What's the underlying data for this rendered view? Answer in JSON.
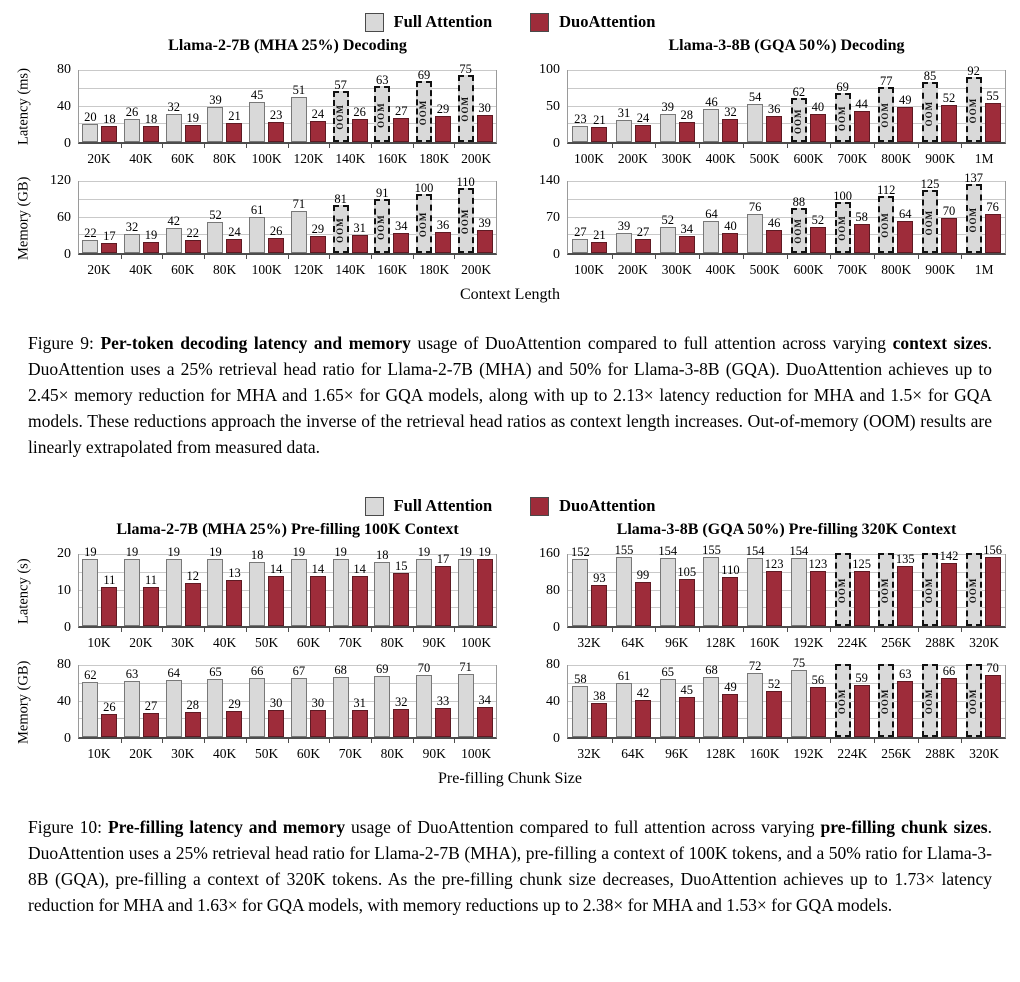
{
  "colors": {
    "full_fill": "#d9d9d9",
    "full_border": "#787878",
    "duo_fill": "#9e2c3a",
    "duo_border": "#5e1a23",
    "grid": "#c9c9c9",
    "axis": "#4d4d4d"
  },
  "chart_data": {
    "type": "grouped-bar",
    "figures": [
      {
        "id": "figure-9",
        "legend": [
          {
            "key": "full",
            "label": "Full Attention"
          },
          {
            "key": "duo",
            "label": "DuoAttention"
          }
        ],
        "xlabel": "Context Length",
        "columns": [
          {
            "title": "Llama-2-7B (MHA 25%) Decoding",
            "categories": [
              "20K",
              "40K",
              "60K",
              "80K",
              "100K",
              "120K",
              "140K",
              "160K",
              "180K",
              "200K"
            ],
            "rows": [
              {
                "ylabel": "Latency (ms)",
                "ymax": 80,
                "yticks": [
                  0,
                  40,
                  80
                ],
                "series": [
                  {
                    "name": "Full Attention",
                    "key": "full",
                    "values": [
                      20,
                      26,
                      32,
                      39,
                      45,
                      51,
                      57,
                      63,
                      69,
                      75
                    ],
                    "oom": [
                      false,
                      false,
                      false,
                      false,
                      false,
                      false,
                      true,
                      true,
                      true,
                      true
                    ]
                  },
                  {
                    "name": "DuoAttention",
                    "key": "duo",
                    "values": [
                      18,
                      18,
                      19,
                      21,
                      23,
                      24,
                      26,
                      27,
                      29,
                      30
                    ]
                  }
                ]
              },
              {
                "ylabel": "Memory (GB)",
                "ymax": 120,
                "yticks": [
                  0,
                  60,
                  120
                ],
                "series": [
                  {
                    "name": "Full Attention",
                    "key": "full",
                    "values": [
                      22,
                      32,
                      42,
                      52,
                      61,
                      71,
                      81,
                      91,
                      100,
                      110
                    ],
                    "oom": [
                      false,
                      false,
                      false,
                      false,
                      false,
                      false,
                      true,
                      true,
                      true,
                      true
                    ]
                  },
                  {
                    "name": "DuoAttention",
                    "key": "duo",
                    "values": [
                      17,
                      19,
                      22,
                      24,
                      26,
                      29,
                      31,
                      34,
                      36,
                      39
                    ]
                  }
                ]
              }
            ]
          },
          {
            "title": "Llama-3-8B (GQA 50%) Decoding",
            "categories": [
              "100K",
              "200K",
              "300K",
              "400K",
              "500K",
              "600K",
              "700K",
              "800K",
              "900K",
              "1M"
            ],
            "rows": [
              {
                "ylabel": "",
                "ymax": 100,
                "yticks": [
                  0,
                  50,
                  100
                ],
                "series": [
                  {
                    "name": "Full Attention",
                    "key": "full",
                    "values": [
                      23,
                      31,
                      39,
                      46,
                      54,
                      62,
                      69,
                      77,
                      85,
                      92
                    ],
                    "oom": [
                      false,
                      false,
                      false,
                      false,
                      false,
                      true,
                      true,
                      true,
                      true,
                      true
                    ]
                  },
                  {
                    "name": "DuoAttention",
                    "key": "duo",
                    "values": [
                      21,
                      24,
                      28,
                      32,
                      36,
                      40,
                      44,
                      49,
                      52,
                      55
                    ]
                  }
                ]
              },
              {
                "ylabel": "",
                "ymax": 140,
                "yticks": [
                  0,
                  70,
                  140
                ],
                "series": [
                  {
                    "name": "Full Attention",
                    "key": "full",
                    "values": [
                      27,
                      39,
                      52,
                      64,
                      76,
                      88,
                      100,
                      112,
                      125,
                      137
                    ],
                    "oom": [
                      false,
                      false,
                      false,
                      false,
                      false,
                      true,
                      true,
                      true,
                      true,
                      true
                    ]
                  },
                  {
                    "name": "DuoAttention",
                    "key": "duo",
                    "values": [
                      21,
                      27,
                      34,
                      40,
                      46,
                      52,
                      58,
                      64,
                      70,
                      76
                    ]
                  }
                ]
              }
            ]
          }
        ],
        "caption": [
          {
            "t": "Figure 9: ",
            "b": false
          },
          {
            "t": "Per-token decoding latency and memory",
            "b": true
          },
          {
            "t": " usage of DuoAttention compared to full attention across varying ",
            "b": false
          },
          {
            "t": "context sizes",
            "b": true
          },
          {
            "t": ". DuoAttention uses a 25% retrieval head ratio for Llama-2-7B (MHA) and 50% for Llama-3-8B (GQA). DuoAttention achieves up to 2.45× memory reduction for MHA and 1.65× for GQA models, along with up to 2.13× latency reduction for MHA and 1.5× for GQA models. These reductions approach the inverse of the retrieval head ratios as context length increases. Out-of-memory (OOM) results are linearly extrapolated from measured data.",
            "b": false
          }
        ]
      },
      {
        "id": "figure-10",
        "legend": [
          {
            "key": "full",
            "label": "Full Attention"
          },
          {
            "key": "duo",
            "label": "DuoAttention"
          }
        ],
        "xlabel": "Pre-filling Chunk Size",
        "columns": [
          {
            "title": "Llama-2-7B (MHA 25%) Pre-filling 100K Context",
            "categories": [
              "10K",
              "20K",
              "30K",
              "40K",
              "50K",
              "60K",
              "70K",
              "80K",
              "90K",
              "100K"
            ],
            "rows": [
              {
                "ylabel": "Latency (s)",
                "ymax": 20,
                "yticks": [
                  0,
                  10,
                  20
                ],
                "series": [
                  {
                    "name": "Full Attention",
                    "key": "full",
                    "values": [
                      19,
                      19,
                      19,
                      19,
                      18,
                      19,
                      19,
                      18,
                      19,
                      19
                    ],
                    "oom": [
                      false,
                      false,
                      false,
                      false,
                      false,
                      false,
                      false,
                      false,
                      false,
                      false
                    ]
                  },
                  {
                    "name": "DuoAttention",
                    "key": "duo",
                    "values": [
                      11,
                      11,
                      12,
                      13,
                      14,
                      14,
                      14,
                      15,
                      17,
                      19
                    ]
                  }
                ]
              },
              {
                "ylabel": "Memory (GB)",
                "ymax": 80,
                "yticks": [
                  0,
                  40,
                  80
                ],
                "series": [
                  {
                    "name": "Full Attention",
                    "key": "full",
                    "values": [
                      62,
                      63,
                      64,
                      65,
                      66,
                      67,
                      68,
                      69,
                      70,
                      71
                    ],
                    "oom": [
                      false,
                      false,
                      false,
                      false,
                      false,
                      false,
                      false,
                      false,
                      false,
                      false
                    ]
                  },
                  {
                    "name": "DuoAttention",
                    "key": "duo",
                    "values": [
                      26,
                      27,
                      28,
                      29,
                      30,
                      30,
                      31,
                      32,
                      33,
                      34
                    ]
                  }
                ]
              }
            ]
          },
          {
            "title": "Llama-3-8B (GQA 50%) Pre-filling 320K Context",
            "categories": [
              "32K",
              "64K",
              "96K",
              "128K",
              "160K",
              "192K",
              "224K",
              "256K",
              "288K",
              "320K"
            ],
            "rows": [
              {
                "ylabel": "",
                "ymax": 160,
                "yticks": [
                  0,
                  80,
                  160
                ],
                "series": [
                  {
                    "name": "Full Attention",
                    "key": "full",
                    "values": [
                      152,
                      155,
                      154,
                      155,
                      154,
                      154,
                      null,
                      null,
                      null,
                      null
                    ],
                    "oom": [
                      false,
                      false,
                      false,
                      false,
                      false,
                      false,
                      true,
                      true,
                      true,
                      true
                    ]
                  },
                  {
                    "name": "DuoAttention",
                    "key": "duo",
                    "values": [
                      93,
                      99,
                      105,
                      110,
                      123,
                      123,
                      125,
                      135,
                      142,
                      156
                    ]
                  }
                ]
              },
              {
                "ylabel": "",
                "ymax": 80,
                "yticks": [
                  0,
                  40,
                  80
                ],
                "series": [
                  {
                    "name": "Full Attention",
                    "key": "full",
                    "values": [
                      58,
                      61,
                      65,
                      68,
                      72,
                      75,
                      null,
                      null,
                      null,
                      null
                    ],
                    "oom": [
                      false,
                      false,
                      false,
                      false,
                      false,
                      false,
                      true,
                      true,
                      true,
                      true
                    ]
                  },
                  {
                    "name": "DuoAttention",
                    "key": "duo",
                    "values": [
                      38,
                      42,
                      45,
                      49,
                      52,
                      56,
                      59,
                      63,
                      66,
                      70
                    ]
                  }
                ]
              }
            ]
          }
        ],
        "caption": [
          {
            "t": "Figure 10: ",
            "b": false
          },
          {
            "t": "Pre-filling latency and memory",
            "b": true
          },
          {
            "t": " usage of DuoAttention compared to full attention across varying ",
            "b": false
          },
          {
            "t": "pre-filling chunk sizes",
            "b": true
          },
          {
            "t": ". DuoAttention uses a 25% retrieval head ratio for Llama-2-7B (MHA), pre-filling a context of 100K tokens, and a 50% ratio for Llama-3-8B (GQA), pre-filling a context of 320K tokens. As the pre-filling chunk size decreases, DuoAttention achieves up to 1.73× latency reduction for MHA and 1.63× for GQA models, with memory reductions up to 2.38× for MHA and 1.53× for GQA models.",
            "b": false
          }
        ]
      }
    ],
    "oom_label": "OOM"
  }
}
